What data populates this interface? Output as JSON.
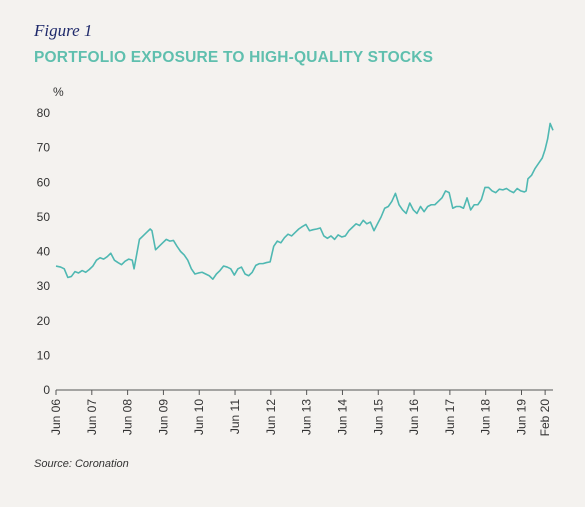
{
  "figure_label": "Figure 1",
  "source": "Source: Coronation",
  "chart_data": {
    "type": "line",
    "title": "PORTFOLIO EXPOSURE TO HIGH-QUALITY STOCKS",
    "ylabel": "%",
    "xlabel": "",
    "ylim": [
      0,
      80
    ],
    "yticks": [
      0,
      10,
      20,
      30,
      40,
      50,
      60,
      70,
      80
    ],
    "xlim": [
      2006.42,
      2020.3
    ],
    "xticks": [
      {
        "label": "Jun 06",
        "x": 2006.42
      },
      {
        "label": "Jun 07",
        "x": 2007.42
      },
      {
        "label": "Jun 08",
        "x": 2008.42
      },
      {
        "label": "Jun 09",
        "x": 2009.42
      },
      {
        "label": "Jun 10",
        "x": 2010.42
      },
      {
        "label": "Jun 11",
        "x": 2011.42
      },
      {
        "label": "Jun 12",
        "x": 2012.42
      },
      {
        "label": "Jun 13",
        "x": 2013.42
      },
      {
        "label": "Jun 14",
        "x": 2014.42
      },
      {
        "label": "Jun 15",
        "x": 2015.42
      },
      {
        "label": "Jun 16",
        "x": 2016.42
      },
      {
        "label": "Jun 17",
        "x": 2017.42
      },
      {
        "label": "Jun 18",
        "x": 2018.42
      },
      {
        "label": "Jun 19",
        "x": 2019.42
      },
      {
        "label": "Feb 20",
        "x": 2020.08
      }
    ],
    "grid": false,
    "color": "#4fb8b2",
    "series": [
      {
        "x": [
          2006.42,
          2006.55,
          2006.65,
          2006.75,
          2006.85,
          2006.95,
          2007.05,
          2007.15,
          2007.25,
          2007.35,
          2007.45,
          2007.55,
          2007.65,
          2007.75,
          2007.85,
          2007.95,
          2008.05,
          2008.15,
          2008.25,
          2008.35,
          2008.45,
          2008.55,
          2008.6,
          2008.75,
          2008.85,
          2008.95,
          2009.05,
          2009.1,
          2009.2,
          2009.3,
          2009.4,
          2009.5,
          2009.6,
          2009.7,
          2009.8,
          2009.9,
          2010.0,
          2010.1,
          2010.2,
          2010.3,
          2010.4,
          2010.5,
          2010.6,
          2010.7,
          2010.8,
          2010.9,
          2011.0,
          2011.1,
          2011.2,
          2011.3,
          2011.4,
          2011.5,
          2011.6,
          2011.7,
          2011.8,
          2011.9,
          2012.0,
          2012.1,
          2012.2,
          2012.3,
          2012.4,
          2012.5,
          2012.6,
          2012.7,
          2012.8,
          2012.9,
          2013.0,
          2013.1,
          2013.2,
          2013.3,
          2013.4,
          2013.5,
          2013.6,
          2013.7,
          2013.8,
          2013.9,
          2014.0,
          2014.1,
          2014.2,
          2014.3,
          2014.4,
          2014.5,
          2014.6,
          2014.7,
          2014.8,
          2014.9,
          2015.0,
          2015.1,
          2015.2,
          2015.3,
          2015.4,
          2015.5,
          2015.6,
          2015.7,
          2015.8,
          2015.9,
          2016.0,
          2016.1,
          2016.2,
          2016.3,
          2016.4,
          2016.5,
          2016.6,
          2016.7,
          2016.8,
          2016.9,
          2017.0,
          2017.1,
          2017.2,
          2017.3,
          2017.4,
          2017.5,
          2017.6,
          2017.7,
          2017.8,
          2017.9,
          2018.0,
          2018.1,
          2018.2,
          2018.3,
          2018.4,
          2018.5,
          2018.6,
          2018.7,
          2018.8,
          2018.9,
          2019.0,
          2019.1,
          2019.2,
          2019.3,
          2019.4,
          2019.5,
          2019.55,
          2019.6,
          2019.7,
          2019.8,
          2019.9,
          2020.0,
          2020.08,
          2020.15,
          2020.22,
          2020.3
        ],
        "values": [
          35.8,
          35.5,
          35.0,
          32.5,
          32.8,
          34.2,
          33.8,
          34.5,
          34.0,
          34.8,
          35.8,
          37.5,
          38.2,
          37.8,
          38.5,
          39.5,
          37.5,
          36.8,
          36.2,
          37.2,
          37.8,
          37.5,
          35.0,
          43.5,
          44.5,
          45.5,
          46.5,
          46.0,
          40.5,
          41.5,
          42.5,
          43.5,
          43.0,
          43.2,
          41.5,
          40.0,
          39.0,
          37.5,
          35.0,
          33.5,
          33.8,
          34.0,
          33.5,
          33.0,
          32.0,
          33.5,
          34.5,
          35.8,
          35.5,
          35.0,
          33.2,
          35.0,
          35.5,
          33.5,
          33.0,
          34.0,
          36.0,
          36.5,
          36.5,
          36.8,
          37.0,
          41.5,
          43.0,
          42.5,
          44.0,
          45.0,
          44.5,
          45.5,
          46.5,
          47.2,
          47.8,
          46.0,
          46.3,
          46.5,
          46.8,
          44.5,
          43.8,
          44.5,
          43.5,
          44.8,
          44.2,
          44.5,
          46.0,
          47.0,
          48.0,
          47.5,
          49.0,
          48.0,
          48.5,
          46.0,
          48.0,
          50.0,
          52.5,
          53.0,
          54.5,
          56.8,
          53.5,
          52.0,
          51.0,
          54.0,
          52.0,
          51.0,
          53.0,
          51.5,
          53.0,
          53.5,
          53.5,
          54.5,
          55.5,
          57.5,
          57.0,
          52.5,
          53.0,
          53.0,
          52.5,
          55.5,
          52.0,
          53.5,
          53.5,
          55.0,
          58.5,
          58.5,
          57.5,
          57.0,
          58.0,
          57.8,
          58.2,
          57.5,
          57.0,
          58.2,
          57.5,
          57.2,
          57.5,
          61.0,
          62.0,
          64.0,
          65.5,
          67.0,
          69.5,
          72.5,
          77.0,
          75.0
        ]
      }
    ]
  }
}
